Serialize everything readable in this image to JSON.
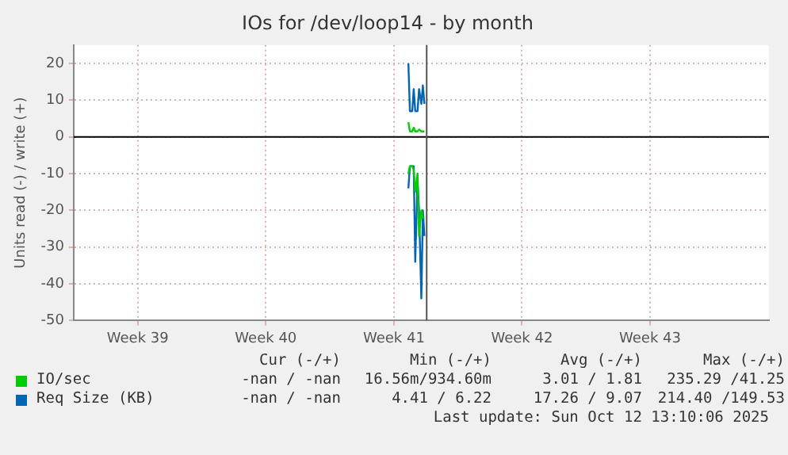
{
  "chart_data": {
    "type": "line",
    "title": "IOs for /dev/loop14 - by month",
    "ylabel": "Units read (-) / write (+)",
    "xlim": [
      "2025-09-22",
      "2025-10-30"
    ],
    "xticks": [
      {
        "value": "2025-09-25T12:00",
        "label": "Week 39"
      },
      {
        "value": "2025-10-02T12:00",
        "label": "Week 40"
      },
      {
        "value": "2025-10-09T12:00",
        "label": "Week 41"
      },
      {
        "value": "2025-10-16T12:00",
        "label": "Week 42"
      },
      {
        "value": "2025-10-23T12:00",
        "label": "Week 43"
      }
    ],
    "ylim": [
      -50,
      25
    ],
    "yticks": [
      -50,
      -40,
      -30,
      -20,
      -10,
      0,
      10,
      20
    ],
    "x": [
      "2025-10-10T07:00",
      "2025-10-10T09:00",
      "2025-10-10T12:00",
      "2025-10-10T14:00",
      "2025-10-10T16:00",
      "2025-10-10T19:00",
      "2025-10-10T21:00",
      "2025-10-11T00:00",
      "2025-10-11T02:00",
      "2025-10-11T04:00"
    ],
    "series": [
      {
        "color": "#00cc00",
        "values": [
          -10,
          -8,
          -8,
          -9,
          -15,
          -10,
          -27,
          -20,
          -22,
          -22
        ]
      },
      {
        "name": "IO/sec",
        "color": "#00cc00",
        "values": [
          4,
          1.5,
          1.5,
          2.5,
          1.5,
          1.5,
          2,
          1.5,
          1.5,
          1.5
        ]
      },
      {
        "color": "#0066b3",
        "values": [
          -14,
          -8,
          -8,
          -8,
          -34,
          -12,
          -20,
          -44,
          -20,
          -27
        ]
      },
      {
        "name": "Req Size (KB)",
        "color": "#0066b3",
        "values": [
          20,
          7,
          7,
          13,
          7,
          7,
          13,
          9,
          14,
          9
        ]
      }
    ],
    "ref_lines": [
      {
        "axis": "y",
        "value": 0,
        "color": "#000000"
      },
      {
        "axis": "x",
        "value": "2025-10-11T07:00",
        "color": "#555555"
      }
    ],
    "grid": true,
    "legend": "bottom",
    "marker": "none",
    "line_style": "solid",
    "annotations": [
      "Cur (-/+)",
      "Min (-/+)",
      "Avg (-/+)",
      "Max (-/+)",
      "-nan / -nan",
      "16.56m/934.60m",
      "3.01 / 1.81",
      "235.29 /41.25",
      "-nan / -nan",
      "4.41 / 6.22",
      "17.26 / 9.07",
      "214.40 /149.53",
      "Last update: Sun Oct 12 13:10:06 2025"
    ]
  }
}
